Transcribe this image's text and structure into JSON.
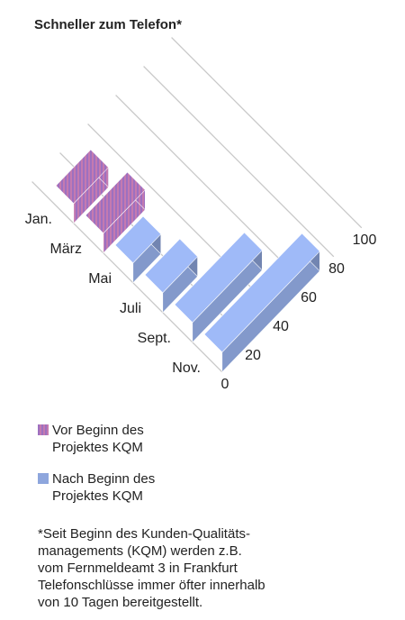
{
  "chart_data": {
    "type": "bar3d",
    "title": "Schneller zum Telefon*",
    "categories": [
      "Jan.",
      "März",
      "Mai",
      "Juli",
      "Sept.",
      "Nov."
    ],
    "series": [
      {
        "name": "Vor Beginn des Projektes KQM",
        "color": "#c47ab0",
        "values": [
          25,
          30,
          null,
          null,
          null,
          null
        ]
      },
      {
        "name": "Nach Beginn des Projektes KQM",
        "color": "#8ea6dd",
        "values": [
          null,
          null,
          20,
          25,
          50,
          70
        ]
      }
    ],
    "ylim": [
      0,
      100
    ],
    "yticks": [
      0,
      20,
      40,
      60,
      80,
      100
    ],
    "grid": true,
    "legend": "bottom"
  },
  "footnote": [
    "*Seit Beginn des Kunden-Qualitäts-",
    "managements (KQM) werden z.B.",
    "vom Fernmeldeamt 3 in Frankfurt",
    "Telefonschlüsse immer öfter innerhalb",
    "von 10 Tagen bereitgestellt."
  ]
}
